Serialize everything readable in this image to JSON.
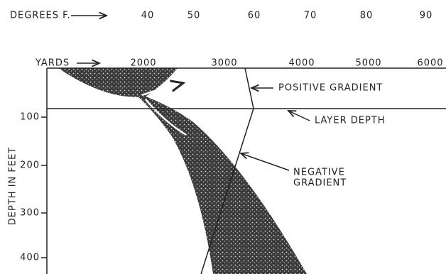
{
  "temperature_axis": {
    "label": "DEGREES F.",
    "ticks": [
      40,
      50,
      60,
      70,
      80,
      90
    ]
  },
  "range_axis": {
    "label": "YARDS",
    "ticks": [
      2000,
      3000,
      4000,
      5000,
      6000
    ]
  },
  "depth_axis": {
    "label": "DEPTH IN FEET",
    "ticks": [
      100,
      200,
      300,
      400
    ]
  },
  "annotations": {
    "positive_gradient": "POSITIVE GRADIENT",
    "layer_depth": "LAYER DEPTH",
    "negative_gradient": [
      "NEGATIVE",
      "GRADIENT"
    ]
  }
}
